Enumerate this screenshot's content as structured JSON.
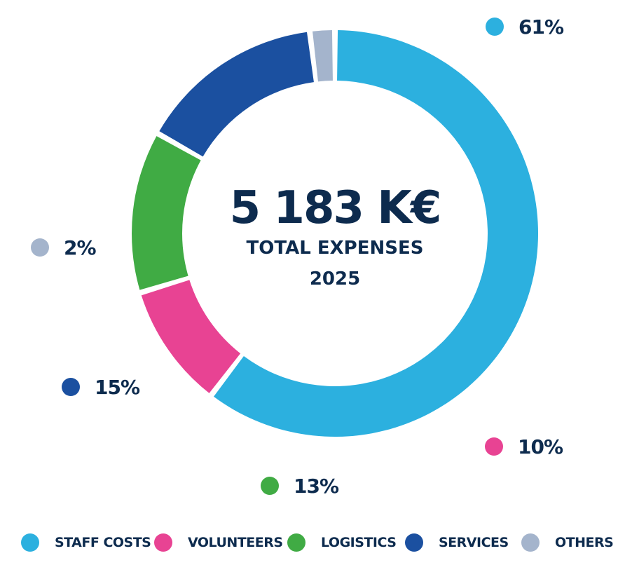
{
  "chart_data": {
    "type": "pie",
    "variant": "donut",
    "center": {
      "total": "5 183 K€",
      "label": "TOTAL EXPENSES",
      "year": "2025"
    },
    "categories": [
      "STAFF COSTS",
      "VOLUNTEERS",
      "LOGISTICS",
      "SERVICES",
      "OTHERS"
    ],
    "values": [
      61,
      10,
      13,
      15,
      2
    ],
    "value_labels": [
      "61%",
      "10%",
      "13%",
      "15%",
      "2%"
    ],
    "unit": "%",
    "colors": [
      "#2cb0df",
      "#e84393",
      "#40ab44",
      "#1b50a0",
      "#a4b4cc"
    ],
    "legend_position": "bottom",
    "start_angle_deg": 270,
    "direction": "clockwise"
  }
}
